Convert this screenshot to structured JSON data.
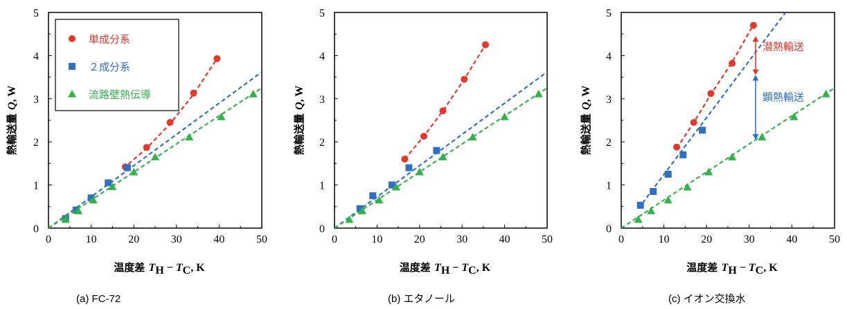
{
  "colors": {
    "single": "#e8362c",
    "binary": "#2f70c4",
    "wall": "#33b24a"
  },
  "chart_data": [
    {
      "type": "scatter",
      "caption": "(a) FC-72",
      "xlabel": {
        "prefix": "温度差",
        "math": "T",
        "sub1": "H",
        "mid": " − ",
        "math2": "T",
        "sub2": "C",
        "suffix": ", K"
      },
      "ylabel": {
        "prefix": "熱輸送量",
        "math": "Q",
        "suffix": ", W"
      },
      "xlim": [
        0,
        50
      ],
      "ylim": [
        0,
        5
      ],
      "xticks": [
        "0",
        "10",
        "20",
        "30",
        "40",
        "50"
      ],
      "yticks": [
        "0",
        "1",
        "2",
        "3",
        "4",
        "5"
      ],
      "grid": false,
      "legend": {
        "placement": "top-left",
        "entries": [
          "単成分系",
          "２成分系",
          "流路壁熱伝導"
        ]
      },
      "series": [
        {
          "name": "単成分系",
          "marker": "circle",
          "color": "single",
          "x": [
            18,
            23,
            28.5,
            34,
            39.5
          ],
          "y": [
            1.42,
            1.87,
            2.45,
            3.13,
            3.93
          ],
          "fit": [
            [
              17.5,
              1.38
            ],
            [
              23,
              1.85
            ],
            [
              28.5,
              2.42
            ],
            [
              34,
              3.1
            ],
            [
              39.5,
              3.93
            ]
          ]
        },
        {
          "name": "２成分系",
          "marker": "square",
          "color": "binary",
          "x": [
            4,
            6.5,
            10,
            14,
            18.5
          ],
          "y": [
            0.22,
            0.42,
            0.7,
            1.05,
            1.4
          ],
          "fit": [
            [
              0,
              0
            ],
            [
              50,
              3.62
            ]
          ]
        },
        {
          "name": "流路壁熱伝導",
          "marker": "triangle",
          "color": "wall",
          "x": [
            4,
            7,
            10.5,
            15,
            20,
            25,
            33,
            40.5,
            48
          ],
          "y": [
            0.2,
            0.4,
            0.65,
            0.96,
            1.3,
            1.65,
            2.11,
            2.58,
            3.11
          ],
          "fit": [
            [
              0,
              0
            ],
            [
              50,
              3.25
            ]
          ]
        }
      ]
    },
    {
      "type": "scatter",
      "caption": "(b) エタノール",
      "xlabel": {
        "prefix": "温度差",
        "math": "T",
        "sub1": "H",
        "mid": " − ",
        "math2": "T",
        "sub2": "C",
        "suffix": ", K"
      },
      "ylabel": {
        "prefix": "熱輸送量",
        "math": "Q",
        "suffix": ", W"
      },
      "xlim": [
        0,
        50
      ],
      "ylim": [
        0,
        5
      ],
      "xticks": [
        "0",
        "10",
        "20",
        "30",
        "40",
        "50"
      ],
      "yticks": [
        "0",
        "1",
        "2",
        "3",
        "4",
        "5"
      ],
      "grid": false,
      "series": [
        {
          "marker": "circle",
          "color": "single",
          "x": [
            16.5,
            21,
            25.5,
            30.5,
            35.5
          ],
          "y": [
            1.6,
            2.13,
            2.72,
            3.45,
            4.25
          ],
          "fit": [
            [
              16.5,
              1.6
            ],
            [
              21,
              2.13
            ],
            [
              25.5,
              2.72
            ],
            [
              30.5,
              3.45
            ],
            [
              35.5,
              4.25
            ]
          ]
        },
        {
          "marker": "square",
          "color": "binary",
          "x": [
            6,
            9,
            13.5,
            17.5,
            24
          ],
          "y": [
            0.45,
            0.75,
            1.0,
            1.4,
            1.8
          ],
          "fit": [
            [
              0,
              0
            ],
            [
              50,
              3.62
            ]
          ]
        },
        {
          "marker": "triangle",
          "color": "wall",
          "x": [
            3.5,
            6.5,
            10.5,
            14.5,
            20,
            25.5,
            32.5,
            40,
            48
          ],
          "y": [
            0.2,
            0.4,
            0.65,
            0.95,
            1.3,
            1.65,
            2.11,
            2.58,
            3.11
          ],
          "fit": [
            [
              0,
              0
            ],
            [
              50,
              3.25
            ]
          ]
        }
      ]
    },
    {
      "type": "scatter",
      "caption": "(c) イオン交換水",
      "xlabel": {
        "prefix": "温度差",
        "math": "T",
        "sub1": "H",
        "mid": " − ",
        "math2": "T",
        "sub2": "C",
        "suffix": ", K"
      },
      "ylabel": {
        "prefix": "熱輸送量",
        "math": "Q",
        "suffix": ", W"
      },
      "xlim": [
        0,
        50
      ],
      "ylim": [
        0,
        5
      ],
      "xticks": [
        "0",
        "10",
        "20",
        "30",
        "40",
        "50"
      ],
      "yticks": [
        "0",
        "1",
        "2",
        "3",
        "4",
        "5"
      ],
      "grid": false,
      "annotations": [
        {
          "text": "潜熱輸送",
          "color": "single",
          "x": 31.5,
          "y_from": 4.45,
          "y_to": 3.55
        },
        {
          "text": "顕熱輸送",
          "color": "binary",
          "x": 31.5,
          "y_from": 3.55,
          "y_to": 2.05
        }
      ],
      "series": [
        {
          "marker": "circle",
          "color": "single",
          "x": [
            13,
            17,
            21,
            26,
            31
          ],
          "y": [
            1.88,
            2.45,
            3.12,
            3.82,
            4.7
          ],
          "fit": [
            [
              13,
              1.85
            ],
            [
              17,
              2.45
            ],
            [
              21,
              3.1
            ],
            [
              26,
              3.85
            ],
            [
              31,
              4.72
            ]
          ]
        },
        {
          "marker": "square",
          "color": "binary",
          "x": [
            4.5,
            7.5,
            11,
            14.5,
            19
          ],
          "y": [
            0.53,
            0.85,
            1.25,
            1.7,
            2.27
          ],
          "fit": [
            [
              4,
              0.45
            ],
            [
              38.5,
              5.0
            ]
          ]
        },
        {
          "marker": "triangle",
          "color": "wall",
          "x": [
            4,
            7,
            11,
            15.5,
            20.5,
            26,
            33,
            40.5,
            48
          ],
          "y": [
            0.2,
            0.4,
            0.65,
            0.95,
            1.3,
            1.65,
            2.11,
            2.58,
            3.11
          ],
          "fit": [
            [
              0,
              0
            ],
            [
              50,
              3.25
            ]
          ]
        }
      ]
    }
  ]
}
